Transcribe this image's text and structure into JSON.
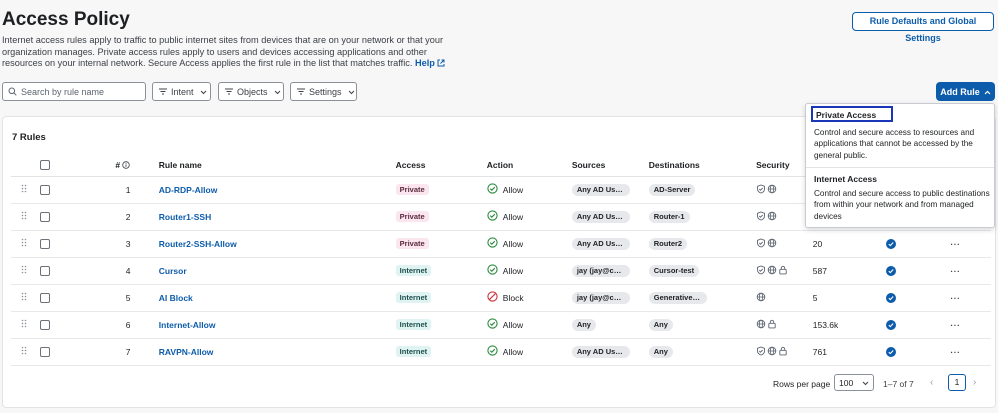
{
  "header": {
    "title": "Access Policy",
    "description": "Internet access rules apply to traffic to public internet sites from devices that are on your network or that your organization manages. Private access rules apply to users and devices accessing applications and other resources on your internal network. Secure Access applies the first rule in the list that matches traffic.",
    "help_label": "Help",
    "defaults_button": "Rule Defaults and Global Settings"
  },
  "toolbar": {
    "search_placeholder": "Search by rule name",
    "filters": [
      "Intent",
      "Objects",
      "Settings"
    ],
    "add_rule_label": "Add Rule"
  },
  "table": {
    "count_label": "7 Rules",
    "columns": {
      "num": "#",
      "name": "Rule name",
      "access": "Access",
      "action": "Action",
      "sources": "Sources",
      "destinations": "Destinations",
      "security": "Security"
    },
    "rows": [
      {
        "num": "1",
        "name": "AD-RDP-Allow",
        "access": "Private",
        "action": "Allow",
        "sources": "Any AD Users",
        "destinations": "AD-Server",
        "security": [
          "shield-icon",
          "globe-icon"
        ],
        "hits": "",
        "status": false
      },
      {
        "num": "2",
        "name": "Router1-SSH",
        "access": "Private",
        "action": "Allow",
        "sources": "Any AD Users",
        "destinations": "Router-1",
        "security": [
          "shield-icon",
          "globe-icon"
        ],
        "hits": "",
        "status": false
      },
      {
        "num": "3",
        "name": "Router2-SSH-Allow",
        "access": "Private",
        "action": "Allow",
        "sources": "Any AD Users",
        "destinations": "Router2",
        "security": [
          "shield-icon",
          "globe-icon"
        ],
        "hits": "20",
        "status": true
      },
      {
        "num": "4",
        "name": "Cursor",
        "access": "Internet",
        "action": "Allow",
        "sources": "jay (jay@csa...",
        "destinations": "Cursor-test",
        "security": [
          "shield-icon",
          "globe-icon",
          "lock-icon"
        ],
        "hits": "587",
        "status": true
      },
      {
        "num": "5",
        "name": "AI Block",
        "access": "Internet",
        "action": "Block",
        "sources": "jay (jay@csa...",
        "destinations": "Generative A...",
        "security": [
          "globe-icon"
        ],
        "hits": "5",
        "status": true
      },
      {
        "num": "6",
        "name": "Internet-Allow",
        "access": "Internet",
        "action": "Allow",
        "sources": "Any",
        "destinations": "Any",
        "security": [
          "globe-icon",
          "lock-icon"
        ],
        "hits": "153.6k",
        "status": true
      },
      {
        "num": "7",
        "name": "RAVPN-Allow",
        "access": "Internet",
        "action": "Allow",
        "sources": "Any AD Users",
        "destinations": "Any",
        "security": [
          "shield-icon",
          "globe-icon",
          "lock-icon"
        ],
        "hits": "761",
        "status": true
      }
    ]
  },
  "pagination": {
    "rows_per_page_label": "Rows per page",
    "rows_per_page": "100",
    "range": "1–7 of 7",
    "current_page": "1"
  },
  "add_rule_menu": {
    "items": [
      {
        "title": "Private Access",
        "description": "Control and secure access to resources and applications that cannot be accessed by the general public."
      },
      {
        "title": "Internet Access",
        "description": "Control and secure access to public destinations from within your network and from managed devices"
      }
    ]
  },
  "colors": {
    "brand": "#0d5cab",
    "private_tag": "#fbe6ef",
    "internet_tag": "#dff3f2",
    "allow": "#2a8a3e",
    "block": "#c8323c",
    "highlight": "#1a36b8"
  }
}
